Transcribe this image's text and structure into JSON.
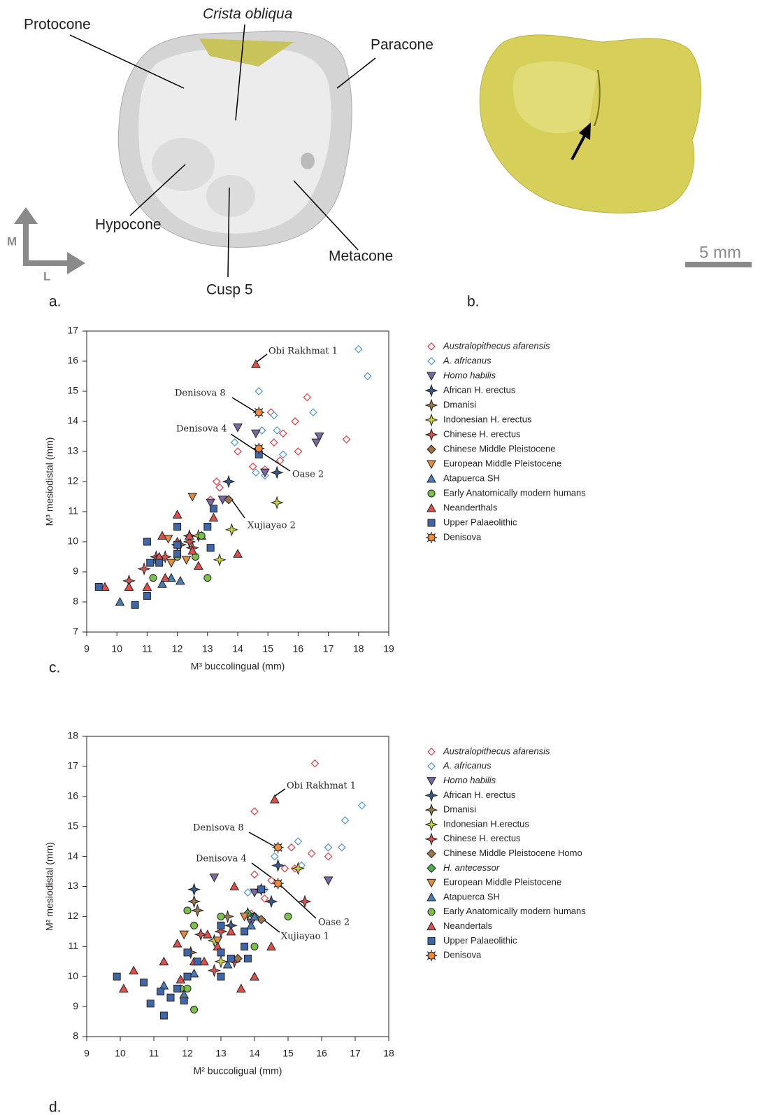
{
  "panel_a": {
    "labels": [
      "Protocone",
      "Crista obliqua",
      "Paracone",
      "Hypocone",
      "Metacone",
      "Cusp 5"
    ],
    "orientation": [
      "M",
      "L"
    ]
  },
  "panel_b": {
    "scale": "5 mm"
  },
  "panel_labels": [
    "a.",
    "b.",
    "c.",
    "d."
  ],
  "chart_data": [
    {
      "type": "scatter",
      "x_label": "M³ buccolingual (mm)",
      "y_label": "M³ mesiodistal (mm)",
      "xlim": [
        9,
        19
      ],
      "ylim": [
        7,
        17
      ],
      "xticks": [
        9,
        10,
        11,
        12,
        13,
        14,
        15,
        16,
        17,
        18,
        19
      ],
      "yticks": [
        7,
        8,
        9,
        10,
        11,
        12,
        13,
        14,
        15,
        16,
        17
      ],
      "annotations": [
        "Obi Rakhmat 1",
        "Denisova 8",
        "Denisova 4",
        "Oase 2",
        "Xujiayao 2"
      ],
      "series": [
        {
          "name": "Australopithecus afarensis",
          "color": "#e8474e",
          "marker": "diamond-open",
          "x": [
            15.1,
            16.3,
            15.9,
            16.0,
            15.2,
            15.5,
            14.0,
            13.3,
            13.4,
            13.1,
            14.5,
            14.9,
            15.4,
            17.6
          ],
          "y": [
            14.3,
            14.8,
            14.0,
            13.0,
            13.3,
            13.6,
            13.0,
            12.0,
            11.8,
            11.4,
            12.5,
            12.4,
            12.7,
            13.4
          ]
        },
        {
          "name": "A. africanus",
          "color": "#5b9bd5",
          "marker": "diamond-open",
          "x": [
            18.0,
            18.3,
            14.7,
            15.2,
            16.5,
            15.3,
            14.8,
            13.9,
            15.5,
            14.6,
            14.9
          ],
          "y": [
            16.4,
            15.5,
            15.0,
            14.2,
            14.3,
            13.7,
            13.7,
            13.3,
            12.9,
            12.3,
            12.2
          ]
        },
        {
          "name": "Homo habilis",
          "color": "#7b68a6",
          "marker": "triangle-down",
          "x": [
            14.0,
            14.6,
            16.7,
            16.6,
            14.9,
            13.1,
            13.5
          ],
          "y": [
            13.8,
            13.6,
            13.5,
            13.3,
            12.3,
            11.3,
            11.4
          ]
        },
        {
          "name": "African H. erectus",
          "color": "#3a5a8c",
          "marker": "star",
          "x": [
            15.3,
            13.7,
            12.0
          ],
          "y": [
            12.3,
            12.0,
            9.9
          ]
        },
        {
          "name": "Dmanisi",
          "color": "#9c7a4f",
          "marker": "star",
          "x": [
            12.4,
            12.1
          ],
          "y": [
            10.2,
            9.9
          ]
        },
        {
          "name": "Indonesian H. erectus",
          "color": "#c8d43c",
          "marker": "star",
          "x": [
            15.3,
            13.8,
            13.4,
            12.7
          ],
          "y": [
            11.3,
            10.4,
            9.4,
            10.2
          ]
        },
        {
          "name": "Chinese H. erectus",
          "color": "#d9534f",
          "marker": "star",
          "x": [
            10.4,
            10.9,
            11.3,
            12.5,
            12.4,
            11.6
          ],
          "y": [
            8.7,
            9.1,
            9.5,
            9.8,
            10.0,
            9.5
          ]
        },
        {
          "name": "Chinese Middle Pleistocene",
          "color": "#a0744a",
          "marker": "diamond",
          "x": [
            13.7
          ],
          "y": [
            11.4
          ]
        },
        {
          "name": "European Middle Pleistocene",
          "color": "#e88a3c",
          "marker": "triangle-down",
          "x": [
            12.5,
            11.8,
            12.3,
            11.7
          ],
          "y": [
            11.5,
            9.3,
            9.4,
            10.1
          ]
        },
        {
          "name": "Atapuerca SH",
          "color": "#4a7fb5",
          "marker": "triangle-up",
          "x": [
            10.1,
            11.5,
            11.8,
            12.1,
            12.8,
            11.3
          ],
          "y": [
            8.0,
            8.6,
            8.8,
            8.7,
            10.2,
            9.4
          ]
        },
        {
          "name": "Early Anatomically modern humans",
          "color": "#7cc24a",
          "marker": "circle",
          "x": [
            12.0,
            11.2,
            12.6,
            12.8,
            13.0
          ],
          "y": [
            9.5,
            8.8,
            9.5,
            10.2,
            8.8
          ]
        },
        {
          "name": "Neanderthals",
          "color": "#e0504a",
          "marker": "triangle-up",
          "x": [
            9.6,
            10.4,
            11.0,
            11.5,
            12.0,
            12.4,
            12.5,
            12.7,
            13.2,
            14.0,
            11.4,
            11.6,
            12.0,
            14.6
          ],
          "y": [
            8.5,
            8.5,
            8.5,
            10.2,
            10.9,
            10.2,
            9.7,
            9.2,
            10.8,
            9.6,
            9.5,
            8.8,
            10.0,
            15.9
          ]
        },
        {
          "name": "Upper Palaeolithic",
          "color": "#3e66a8",
          "marker": "square",
          "x": [
            9.4,
            10.6,
            11.0,
            11.0,
            11.1,
            12.0,
            12.0,
            13.0,
            13.1,
            13.2,
            11.4,
            14.7,
            12.0
          ],
          "y": [
            8.5,
            7.9,
            8.2,
            10.0,
            9.3,
            10.5,
            9.6,
            10.5,
            9.8,
            11.1,
            9.3,
            12.9,
            9.9
          ]
        },
        {
          "name": "Denisova",
          "color": "#f08a3c",
          "marker": "denisova",
          "x": [
            14.7,
            14.7
          ],
          "y": [
            14.3,
            13.1
          ]
        }
      ]
    },
    {
      "type": "scatter",
      "x_label": "M² buccoligual (mm)",
      "y_label": "M² mesiodistal (mm)",
      "xlim": [
        9,
        18
      ],
      "ylim": [
        8,
        18
      ],
      "xticks": [
        9,
        10,
        11,
        12,
        13,
        14,
        15,
        16,
        17,
        18
      ],
      "yticks": [
        8,
        9,
        10,
        11,
        12,
        13,
        14,
        15,
        16,
        17,
        18
      ],
      "annotations": [
        "Obi Rakhmat 1",
        "Denisova 8",
        "Denisova 4",
        "Oase 2",
        "Xujiayao 1"
      ],
      "series": [
        {
          "name": "Australopithecus afarensis",
          "color": "#e8474e",
          "marker": "diamond-open",
          "x": [
            15.8,
            14.0,
            16.2,
            15.7,
            15.1,
            15.2,
            14.9,
            14.0,
            14.3,
            14.5,
            13.9
          ],
          "y": [
            17.1,
            15.5,
            14.0,
            14.1,
            14.3,
            13.6,
            13.6,
            13.4,
            12.6,
            13.2,
            12.1
          ]
        },
        {
          "name": "A. africanus",
          "color": "#5b9bd5",
          "marker": "diamond-open",
          "x": [
            17.2,
            16.7,
            16.2,
            16.6,
            15.3,
            14.6,
            13.8,
            14.3,
            15.4
          ],
          "y": [
            15.7,
            15.2,
            14.3,
            14.3,
            14.5,
            14.0,
            12.8,
            12.9,
            13.7
          ]
        },
        {
          "name": "Homo habilis",
          "color": "#7b68a6",
          "marker": "triangle-down",
          "x": [
            12.8,
            16.2,
            14.0,
            13.9
          ],
          "y": [
            13.3,
            13.2,
            12.8,
            11.8
          ]
        },
        {
          "name": "African H. erectus",
          "color": "#3a5a8c",
          "marker": "star",
          "x": [
            12.2,
            14.7,
            14.5,
            13.3,
            14.2
          ],
          "y": [
            12.9,
            13.7,
            12.5,
            11.7,
            12.9
          ]
        },
        {
          "name": "Dmanisi",
          "color": "#9c7a4f",
          "marker": "star",
          "x": [
            12.2,
            12.3,
            13.2,
            12.1
          ],
          "y": [
            12.5,
            12.2,
            12.0,
            10.8
          ]
        },
        {
          "name": "Indonesian H.erectus",
          "color": "#c8d43c",
          "marker": "star",
          "x": [
            15.3,
            13.8,
            13.0,
            12.8
          ],
          "y": [
            13.6,
            12.1,
            10.5,
            11.2
          ]
        },
        {
          "name": "Chinese H. erectus",
          "color": "#d9534f",
          "marker": "star",
          "x": [
            12.4,
            15.5,
            12.8,
            13.4,
            13.0
          ],
          "y": [
            11.4,
            12.5,
            10.2,
            10.5,
            11.5
          ]
        },
        {
          "name": "Chinese Middle Pleistocene Homo",
          "color": "#a0744a",
          "marker": "diamond",
          "x": [
            14.2,
            13.5
          ],
          "y": [
            11.9,
            10.6
          ]
        },
        {
          "name": "H. antecessor",
          "color": "#4caf50",
          "marker": "diamond",
          "x": [
            14.0,
            13.8
          ],
          "y": [
            12.0,
            12.1
          ]
        },
        {
          "name": "European Middle Pleistocene",
          "color": "#e88a3c",
          "marker": "triangle-down",
          "x": [
            11.9,
            12.9,
            13.7
          ],
          "y": [
            11.4,
            11.2,
            12.0
          ]
        },
        {
          "name": "Atapuerca SH",
          "color": "#4a7fb5",
          "marker": "triangle-up",
          "x": [
            11.3,
            12.2,
            13.2,
            13.9,
            14.0,
            11.9
          ],
          "y": [
            9.7,
            10.1,
            10.4,
            11.7,
            12.0,
            9.4
          ]
        },
        {
          "name": "Early Anatomically modern humans",
          "color": "#7cc24a",
          "marker": "circle",
          "x": [
            12.0,
            12.2,
            13.0,
            15.0,
            12.0,
            12.2,
            14.0,
            11.8
          ],
          "y": [
            12.2,
            11.7,
            12.0,
            12.0,
            9.6,
            8.9,
            11.0,
            9.6
          ]
        },
        {
          "name": "Neandertals",
          "color": "#e0504a",
          "marker": "triangle-up",
          "x": [
            14.6,
            10.1,
            10.4,
            11.3,
            11.7,
            11.8,
            12.2,
            12.5,
            12.9,
            13.4,
            13.6,
            14.0,
            14.5,
            13.3,
            12.6
          ],
          "y": [
            15.9,
            9.6,
            10.2,
            10.5,
            11.1,
            9.9,
            10.5,
            10.5,
            11.0,
            13.0,
            9.6,
            10.0,
            11.0,
            11.5,
            11.4
          ]
        },
        {
          "name": "Upper Palaeolithic",
          "color": "#3e66a8",
          "marker": "square",
          "x": [
            9.9,
            10.7,
            10.9,
            11.2,
            11.3,
            11.5,
            11.7,
            11.9,
            12.0,
            12.0,
            12.3,
            13.0,
            13.0,
            13.3,
            13.8,
            13.7,
            13.7,
            14.2,
            13.0
          ],
          "y": [
            10.0,
            9.8,
            9.1,
            9.5,
            8.7,
            9.3,
            9.6,
            9.2,
            10.0,
            10.8,
            10.5,
            10.0,
            10.8,
            10.6,
            10.6,
            11.0,
            11.5,
            12.9,
            11.7
          ]
        },
        {
          "name": "Denisova",
          "color": "#f08a3c",
          "marker": "denisova",
          "x": [
            14.7,
            14.7
          ],
          "y": [
            14.3,
            13.1
          ]
        }
      ]
    }
  ]
}
